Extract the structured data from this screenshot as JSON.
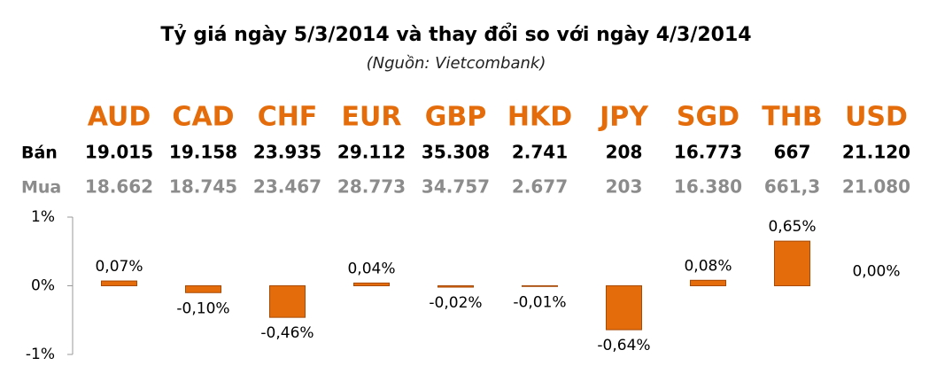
{
  "chart_data": {
    "type": "bar",
    "title": "Tỷ giá ngày 5/3/2014 và thay đổi so với ngày 4/3/2014",
    "subtitle": "(Nguồn: Vietcombank)",
    "categories": [
      "AUD",
      "CAD",
      "CHF",
      "EUR",
      "GBP",
      "HKD",
      "JPY",
      "SGD",
      "THB",
      "USD"
    ],
    "rows": [
      {
        "label": "Bán",
        "values": [
          "19.015",
          "19.158",
          "23.935",
          "29.112",
          "35.308",
          "2.741",
          "208",
          "16.773",
          "667",
          "21.120"
        ]
      },
      {
        "label": "Mua",
        "values": [
          "18.662",
          "18.745",
          "23.467",
          "28.773",
          "34.757",
          "2.677",
          "203",
          "16.380",
          "661,3",
          "21.080"
        ]
      }
    ],
    "values": [
      0.07,
      -0.1,
      -0.46,
      0.04,
      -0.02,
      -0.01,
      -0.64,
      0.08,
      0.65,
      0
    ],
    "value_labels": [
      "0,07%",
      "-0,10%",
      "-0,46%",
      "0,04%",
      "-0,02%",
      "-0,01%",
      "-0,64%",
      "0,08%",
      "0,65%",
      "0,00%"
    ],
    "color": "#e46c0a",
    "ylim": [
      -1,
      1
    ],
    "yticks": [
      {
        "value": 1,
        "label": "1%"
      },
      {
        "value": 0,
        "label": "0%"
      },
      {
        "value": -1,
        "label": "-1%"
      }
    ]
  }
}
